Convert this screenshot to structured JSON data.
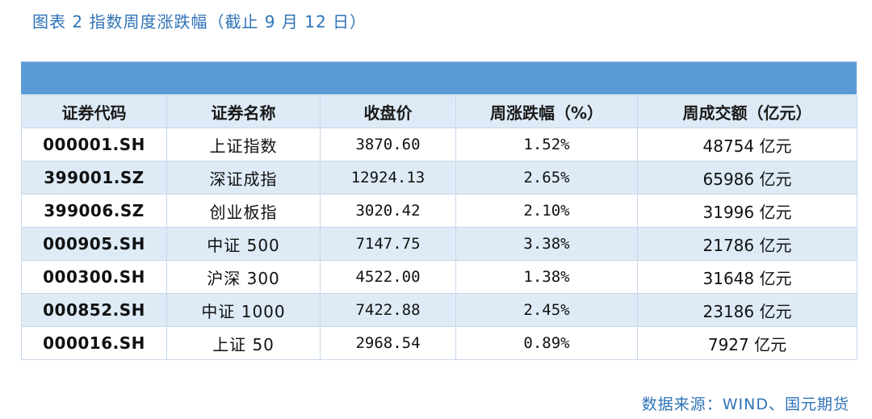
{
  "caption": "图表 2 指数周度涨跌幅（截止 9 月 12 日）",
  "table": {
    "headers": [
      "证券代码",
      "证券名称",
      "收盘价",
      "周涨跌幅（%）",
      "周成交额（亿元）"
    ],
    "rows": [
      [
        "000001.SH",
        "上证指数",
        "3870.60",
        "1.52%",
        "48754 亿元"
      ],
      [
        "399001.SZ",
        "深证成指",
        "12924.13",
        "2.65%",
        "65986 亿元"
      ],
      [
        "399006.SZ",
        "创业板指",
        "3020.42",
        "2.10%",
        "31996 亿元"
      ],
      [
        "000905.SH",
        "中证 500",
        "7147.75",
        "3.38%",
        "21786 亿元"
      ],
      [
        "000300.SH",
        "沪深 300",
        "4522.00",
        "1.38%",
        "31648 亿元"
      ],
      [
        "000852.SH",
        "中证 1000",
        "7422.88",
        "2.45%",
        "23186 亿元"
      ],
      [
        "000016.SH",
        "上证 50",
        "2968.54",
        "0.89%",
        "7927 亿元"
      ]
    ]
  },
  "source": "数据来源：WIND、国元期货",
  "colors": {
    "accent_text": "#2f73b8",
    "title_band": "#5b9bd5",
    "stripe": "#deebf7"
  }
}
